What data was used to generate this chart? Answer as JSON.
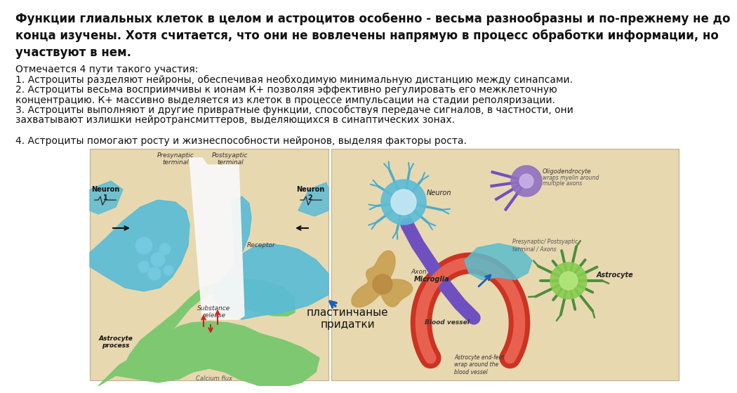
{
  "bg_color": "#ffffff",
  "title_text": "Функции глиальных клеток в целом и астроцитов особенно - весьма разнообразны и по-прежнему не до\nконца изучены. Хотя считается, что они не вовлечены напрямую в процесс обработки информации, но\nучаствуют в нем.",
  "body_line0": "Отмечается 4 пути такого участия:",
  "body_line1": "1. Астроциты разделяют нейроны, обеспечивая необходимую минимальную дистанцию между синапсами.",
  "body_line2": "2. Астроциты весьма восприимчивы к ионам К+ позволяя эффективно регулировать его межклеточную",
  "body_line3": "концентрацию. К+ массивно выделяется из клеток в процессе импульсации на стадии реполяризации.",
  "body_line4": "3. Астроциты выполняют и другие привратные функции, способствуя передаче сигналов, в частности, они",
  "body_line5": "захватывают излишки нейротрансмиттеров, выделяющихся в синаптических зонах.",
  "body_line6": "",
  "body_line7": "4. Астроциты помогают росту и жизнеспособности нейронов, выделяя факторы роста.",
  "label_plastinchanye": "пластинчаные\nпридатки",
  "title_fontsize": 12,
  "body_fontsize": 10,
  "label_fontsize": 11,
  "neuron_blue": "#5bbcd6",
  "neuron_blue2": "#74c8e0",
  "astrocyte_green": "#7dc870",
  "astrocyte_green_dark": "#4a8f3a",
  "microglia_tan": "#c8a050",
  "blood_vessel_red": "#cc3322",
  "blood_vessel_light": "#e86050",
  "axon_purple": "#7050c0",
  "oligodendrocyte_purple": "#9070c0",
  "synapse_cleft": "#f8f8f8",
  "left_bg": "#e8d8b0",
  "right_bg": "#e8d8b0",
  "arrow_blue": "#1a5fb4",
  "text_dark": "#111111",
  "text_gray": "#444444"
}
